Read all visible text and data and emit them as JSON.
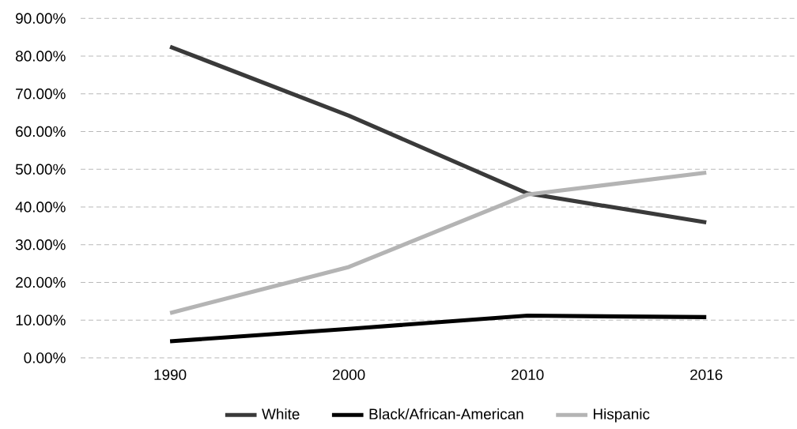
{
  "chart_data": {
    "type": "line",
    "categories": [
      "1990",
      "2000",
      "2010",
      "2016"
    ],
    "series": [
      {
        "name": "White",
        "color": "#3a3a3a",
        "values": [
          82.5,
          64.2,
          43.6,
          35.9
        ]
      },
      {
        "name": "Black/African-American",
        "color": "#000000",
        "values": [
          4.4,
          7.7,
          11.2,
          10.8
        ]
      },
      {
        "name": "Hispanic",
        "color": "#b4b4b4",
        "values": [
          11.9,
          24.1,
          43.3,
          49.1
        ]
      }
    ],
    "ylim": [
      0,
      90
    ],
    "yticks": [
      {
        "value": 0,
        "label": "0.00%"
      },
      {
        "value": 10,
        "label": "10.00%"
      },
      {
        "value": 20,
        "label": "20.00%"
      },
      {
        "value": 30,
        "label": "30.00%"
      },
      {
        "value": 40,
        "label": "40.00%"
      },
      {
        "value": 50,
        "label": "50.00%"
      },
      {
        "value": 60,
        "label": "60.00%"
      },
      {
        "value": 70,
        "label": "70.00%"
      },
      {
        "value": 80,
        "label": "80.00%"
      },
      {
        "value": 90,
        "label": "90.00%"
      }
    ],
    "grid": "y",
    "legend": "bottom",
    "marker": "none",
    "line_style": "solid"
  }
}
